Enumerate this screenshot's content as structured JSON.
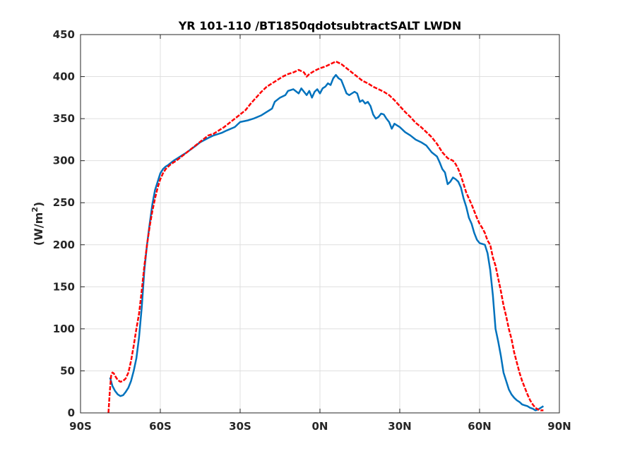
{
  "chart_data": {
    "type": "line",
    "title": "YR 101-110 /BT1850qdotsubtractSALT LWDN",
    "ylabel_main": "(W/m",
    "ylabel_sup": "2",
    "ylabel_close": ")",
    "xlabel": "",
    "xlim": [
      -90,
      90
    ],
    "ylim": [
      0,
      450
    ],
    "grid": true,
    "x_ticks": [
      {
        "value": -90,
        "label": "90S"
      },
      {
        "value": -60,
        "label": "60S"
      },
      {
        "value": -30,
        "label": "30S"
      },
      {
        "value": 0,
        "label": "0N"
      },
      {
        "value": 30,
        "label": "30N"
      },
      {
        "value": 60,
        "label": "60N"
      },
      {
        "value": 90,
        "label": "90N"
      }
    ],
    "y_ticks": [
      {
        "value": 0,
        "label": "0"
      },
      {
        "value": 50,
        "label": "50"
      },
      {
        "value": 100,
        "label": "100"
      },
      {
        "value": 150,
        "label": "150"
      },
      {
        "value": 200,
        "label": "200"
      },
      {
        "value": 250,
        "label": "250"
      },
      {
        "value": 300,
        "label": "300"
      },
      {
        "value": 350,
        "label": "350"
      },
      {
        "value": 400,
        "label": "400"
      },
      {
        "value": 450,
        "label": "450"
      }
    ],
    "series": [
      {
        "color": "#0072BD",
        "dash": "solid",
        "points": [
          [
            -78.9,
            42
          ],
          [
            -78,
            32
          ],
          [
            -77,
            26
          ],
          [
            -76,
            22
          ],
          [
            -75,
            20
          ],
          [
            -74,
            21
          ],
          [
            -73,
            25
          ],
          [
            -72,
            30
          ],
          [
            -71,
            38
          ],
          [
            -70,
            50
          ],
          [
            -69,
            65
          ],
          [
            -68,
            90
          ],
          [
            -67,
            125
          ],
          [
            -66,
            170
          ],
          [
            -65,
            200
          ],
          [
            -64,
            225
          ],
          [
            -63,
            248
          ],
          [
            -62,
            265
          ],
          [
            -61,
            275
          ],
          [
            -60,
            285
          ],
          [
            -59,
            290
          ],
          [
            -58,
            293
          ],
          [
            -57,
            295
          ],
          [
            -55,
            300
          ],
          [
            -53,
            304
          ],
          [
            -50,
            310
          ],
          [
            -47,
            317
          ],
          [
            -45,
            322
          ],
          [
            -42,
            327
          ],
          [
            -40,
            330
          ],
          [
            -37,
            333
          ],
          [
            -35,
            336
          ],
          [
            -32,
            340
          ],
          [
            -30,
            346
          ],
          [
            -27,
            348
          ],
          [
            -25,
            350
          ],
          [
            -22,
            354
          ],
          [
            -20,
            358
          ],
          [
            -18,
            362
          ],
          [
            -17,
            370
          ],
          [
            -15,
            375
          ],
          [
            -13,
            378
          ],
          [
            -12,
            383
          ],
          [
            -10,
            385
          ],
          [
            -8,
            380
          ],
          [
            -7,
            386
          ],
          [
            -5,
            378
          ],
          [
            -4,
            383
          ],
          [
            -3,
            375
          ],
          [
            -2,
            382
          ],
          [
            -1,
            385
          ],
          [
            0,
            380
          ],
          [
            1,
            386
          ],
          [
            2,
            388
          ],
          [
            3,
            392
          ],
          [
            4,
            390
          ],
          [
            5,
            398
          ],
          [
            6,
            402
          ],
          [
            7,
            398
          ],
          [
            8,
            396
          ],
          [
            9,
            388
          ],
          [
            10,
            380
          ],
          [
            11,
            378
          ],
          [
            12,
            380
          ],
          [
            13,
            382
          ],
          [
            14,
            380
          ],
          [
            15,
            370
          ],
          [
            16,
            372
          ],
          [
            17,
            368
          ],
          [
            18,
            370
          ],
          [
            19,
            365
          ],
          [
            20,
            355
          ],
          [
            21,
            350
          ],
          [
            22,
            352
          ],
          [
            23,
            356
          ],
          [
            24,
            355
          ],
          [
            25,
            350
          ],
          [
            26,
            346
          ],
          [
            27,
            338
          ],
          [
            28,
            344
          ],
          [
            29,
            342
          ],
          [
            30,
            340
          ],
          [
            32,
            334
          ],
          [
            34,
            330
          ],
          [
            36,
            325
          ],
          [
            38,
            322
          ],
          [
            40,
            318
          ],
          [
            42,
            310
          ],
          [
            44,
            305
          ],
          [
            45,
            298
          ],
          [
            46,
            290
          ],
          [
            47,
            286
          ],
          [
            48,
            272
          ],
          [
            49,
            275
          ],
          [
            50,
            280
          ],
          [
            51,
            278
          ],
          [
            52,
            275
          ],
          [
            53,
            268
          ],
          [
            54,
            255
          ],
          [
            55,
            245
          ],
          [
            56,
            232
          ],
          [
            57,
            225
          ],
          [
            58,
            214
          ],
          [
            59,
            206
          ],
          [
            60,
            202
          ],
          [
            61,
            201
          ],
          [
            62,
            200
          ],
          [
            63,
            190
          ],
          [
            64,
            170
          ],
          [
            65,
            140
          ],
          [
            66,
            100
          ],
          [
            67,
            85
          ],
          [
            68,
            68
          ],
          [
            69,
            48
          ],
          [
            70,
            38
          ],
          [
            71,
            28
          ],
          [
            72,
            22
          ],
          [
            73,
            18
          ],
          [
            74,
            15
          ],
          [
            75,
            13
          ],
          [
            76,
            10
          ],
          [
            77,
            9
          ],
          [
            78,
            8
          ],
          [
            79,
            6
          ],
          [
            80,
            5
          ],
          [
            81,
            3
          ],
          [
            82,
            4
          ],
          [
            83,
            6
          ],
          [
            84,
            8
          ]
        ]
      },
      {
        "color": "#FF0000",
        "dash": "dashed",
        "points": [
          [
            -79.5,
            0
          ],
          [
            -79,
            25
          ],
          [
            -78.5,
            44
          ],
          [
            -78,
            48
          ],
          [
            -77.5,
            47
          ],
          [
            -77,
            44
          ],
          [
            -76,
            39
          ],
          [
            -75,
            37
          ],
          [
            -74,
            38
          ],
          [
            -73,
            41
          ],
          [
            -72,
            48
          ],
          [
            -71,
            62
          ],
          [
            -70,
            80
          ],
          [
            -69,
            100
          ],
          [
            -68,
            118
          ],
          [
            -67,
            145
          ],
          [
            -66,
            175
          ],
          [
            -65,
            200
          ],
          [
            -64,
            222
          ],
          [
            -63,
            240
          ],
          [
            -62,
            255
          ],
          [
            -61,
            268
          ],
          [
            -60,
            278
          ],
          [
            -59,
            285
          ],
          [
            -58,
            290
          ],
          [
            -56,
            296
          ],
          [
            -54,
            300
          ],
          [
            -52,
            305
          ],
          [
            -50,
            310
          ],
          [
            -48,
            315
          ],
          [
            -46,
            320
          ],
          [
            -44,
            325
          ],
          [
            -42,
            330
          ],
          [
            -40,
            332
          ],
          [
            -38,
            336
          ],
          [
            -36,
            340
          ],
          [
            -34,
            345
          ],
          [
            -32,
            350
          ],
          [
            -30,
            355
          ],
          [
            -28,
            360
          ],
          [
            -26,
            368
          ],
          [
            -24,
            375
          ],
          [
            -22,
            382
          ],
          [
            -20,
            388
          ],
          [
            -18,
            392
          ],
          [
            -16,
            396
          ],
          [
            -14,
            400
          ],
          [
            -12,
            403
          ],
          [
            -10,
            405
          ],
          [
            -8,
            408
          ],
          [
            -6,
            405
          ],
          [
            -5,
            400
          ],
          [
            -4,
            403
          ],
          [
            -3,
            405
          ],
          [
            -2,
            407
          ],
          [
            0,
            410
          ],
          [
            2,
            412
          ],
          [
            4,
            415
          ],
          [
            6,
            418
          ],
          [
            8,
            415
          ],
          [
            10,
            410
          ],
          [
            12,
            405
          ],
          [
            14,
            400
          ],
          [
            16,
            395
          ],
          [
            18,
            392
          ],
          [
            20,
            388
          ],
          [
            22,
            385
          ],
          [
            24,
            382
          ],
          [
            26,
            378
          ],
          [
            28,
            372
          ],
          [
            30,
            365
          ],
          [
            32,
            358
          ],
          [
            34,
            352
          ],
          [
            36,
            345
          ],
          [
            38,
            340
          ],
          [
            40,
            334
          ],
          [
            42,
            328
          ],
          [
            44,
            320
          ],
          [
            46,
            310
          ],
          [
            48,
            303
          ],
          [
            50,
            300
          ],
          [
            51,
            296
          ],
          [
            52,
            290
          ],
          [
            53,
            282
          ],
          [
            54,
            272
          ],
          [
            55,
            262
          ],
          [
            56,
            255
          ],
          [
            57,
            248
          ],
          [
            58,
            240
          ],
          [
            59,
            232
          ],
          [
            60,
            225
          ],
          [
            61,
            220
          ],
          [
            62,
            214
          ],
          [
            63,
            205
          ],
          [
            64,
            200
          ],
          [
            65,
            185
          ],
          [
            66,
            175
          ],
          [
            67,
            160
          ],
          [
            68,
            145
          ],
          [
            69,
            128
          ],
          [
            70,
            115
          ],
          [
            71,
            100
          ],
          [
            72,
            88
          ],
          [
            73,
            72
          ],
          [
            74,
            60
          ],
          [
            75,
            48
          ],
          [
            76,
            38
          ],
          [
            77,
            30
          ],
          [
            78,
            22
          ],
          [
            79,
            15
          ],
          [
            80,
            10
          ],
          [
            81,
            6
          ],
          [
            82,
            4
          ],
          [
            83,
            3
          ],
          [
            84,
            3
          ]
        ]
      }
    ]
  }
}
